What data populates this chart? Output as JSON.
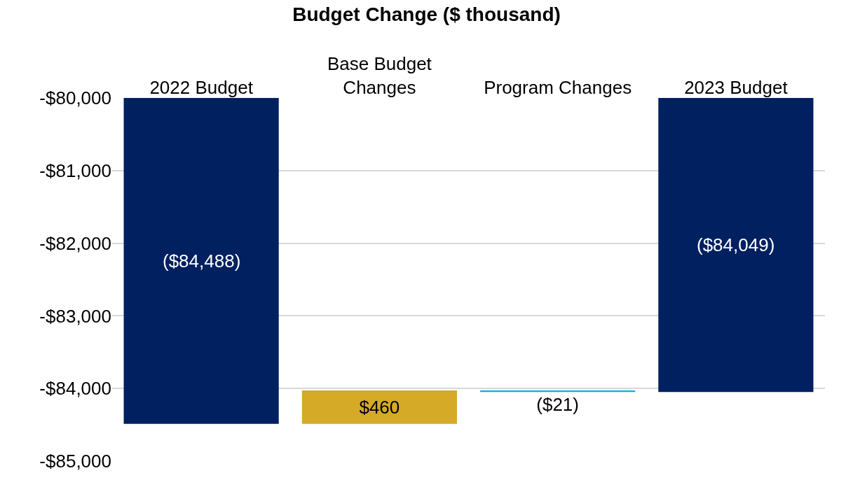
{
  "chart_data": {
    "type": "bar",
    "title": "Budget Change ($ thousand)",
    "categories": [
      "2022 Budget",
      "Base Budget Changes",
      "Program Changes",
      "2023 Budget"
    ],
    "values": [
      -84488,
      460,
      -21,
      -84049
    ],
    "base": [
      null,
      -84488,
      -84028,
      null
    ],
    "colors": [
      "#002060",
      "#d4aa27",
      "#00b0f0",
      "#002060"
    ],
    "value_labels": [
      "($84,488)",
      "$460",
      "($21)",
      "($84,049)"
    ],
    "ylim": [
      -85000,
      -80000
    ],
    "yticks": [
      {
        "value": -85000,
        "label": "-$85,000"
      },
      {
        "value": -84000,
        "label": "-$84,000"
      },
      {
        "value": -83000,
        "label": "-$83,000"
      },
      {
        "value": -82000,
        "label": "-$82,000"
      },
      {
        "value": -81000,
        "label": "-$81,000"
      },
      {
        "value": -80000,
        "label": "-$80,000"
      }
    ],
    "grid": "y"
  }
}
